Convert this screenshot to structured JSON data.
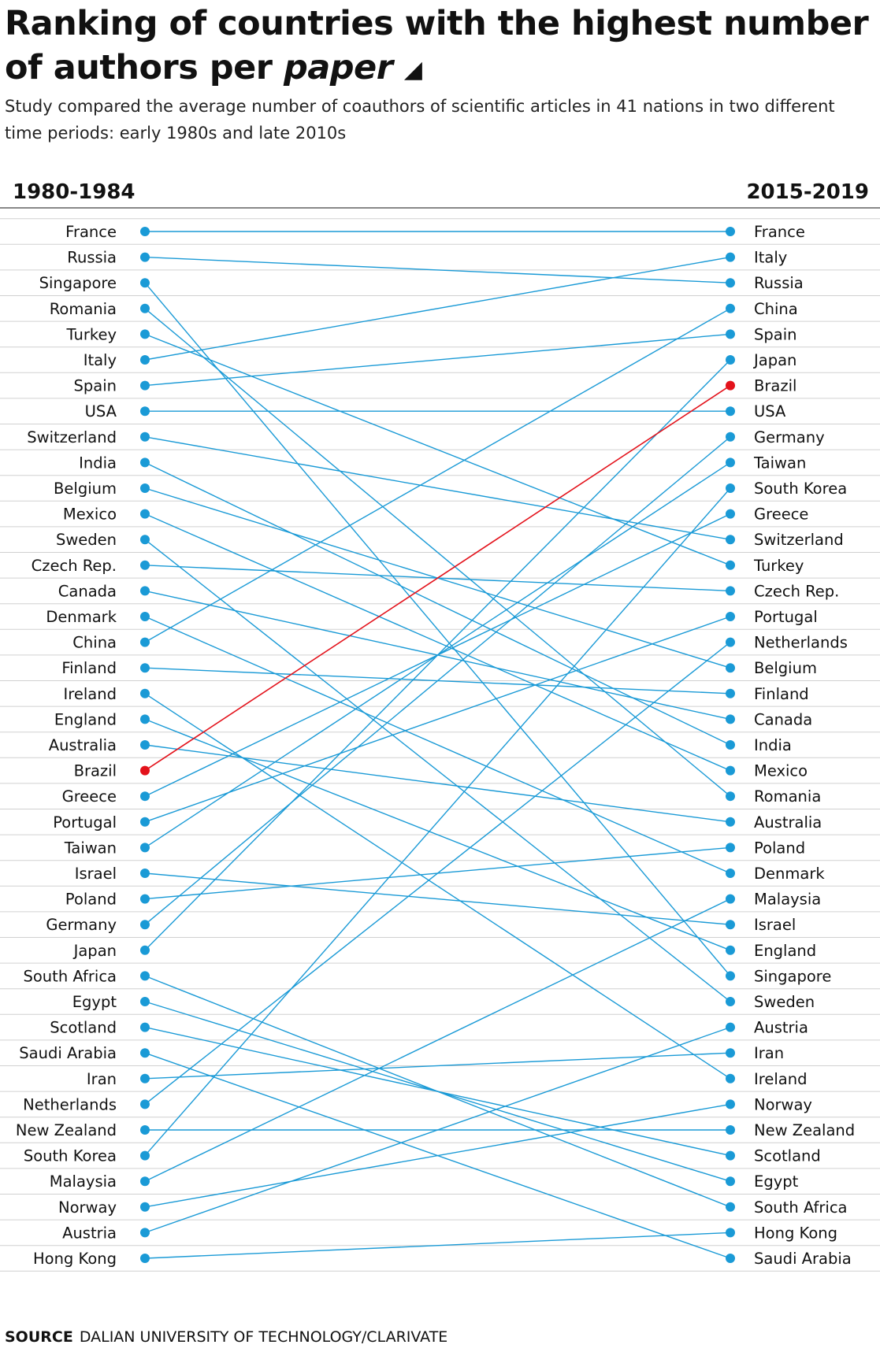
{
  "title": "Ranking of countries with the highest number of authors per",
  "title_emphasis": "paper",
  "title_marker": "◢",
  "subtitle": "Study compared the average number of coauthors of scientific articles in 41 nations in two different time periods: early 1980s and late 2010s",
  "source_label": "SOURCE",
  "source_text": "DALIAN UNIVERSITY OF TECHNOLOGY/CLARIVATE",
  "colors": {
    "line": "#1a9ad6",
    "highlight": "#e3121b",
    "rule": "#d0d0d0",
    "header_rule": "#888888"
  },
  "chart_data": {
    "type": "slope",
    "left_label": "1980-1984",
    "right_label": "2015-2019",
    "highlight": "Brazil",
    "left_ranking": [
      "France",
      "Russia",
      "Singapore",
      "Romania",
      "Turkey",
      "Italy",
      "Spain",
      "USA",
      "Switzerland",
      "India",
      "Belgium",
      "Mexico",
      "Sweden",
      "Czech Rep.",
      "Canada",
      "Denmark",
      "China",
      "Finland",
      "Ireland",
      "England",
      "Australia",
      "Brazil",
      "Greece",
      "Portugal",
      "Taiwan",
      "Israel",
      "Poland",
      "Germany",
      "Japan",
      "South Africa",
      "Egypt",
      "Scotland",
      "Saudi Arabia",
      "Iran",
      "Netherlands",
      "New Zealand",
      "South Korea",
      "Malaysia",
      "Norway",
      "Austria",
      "Hong Kong"
    ],
    "right_ranking": [
      "France",
      "Italy",
      "Russia",
      "China",
      "Spain",
      "Japan",
      "Brazil",
      "USA",
      "Germany",
      "Taiwan",
      "South Korea",
      "Greece",
      "Switzerland",
      "Turkey",
      "Czech Rep.",
      "Portugal",
      "Netherlands",
      "Belgium",
      "Finland",
      "Canada",
      "India",
      "Mexico",
      "Romania",
      "Australia",
      "Poland",
      "Denmark",
      "Malaysia",
      "Israel",
      "England",
      "Singapore",
      "Sweden",
      "Austria",
      "Iran",
      "Ireland",
      "Norway",
      "New Zealand",
      "Scotland",
      "Egypt",
      "South Africa",
      "Hong Kong",
      "Saudi Arabia"
    ]
  }
}
